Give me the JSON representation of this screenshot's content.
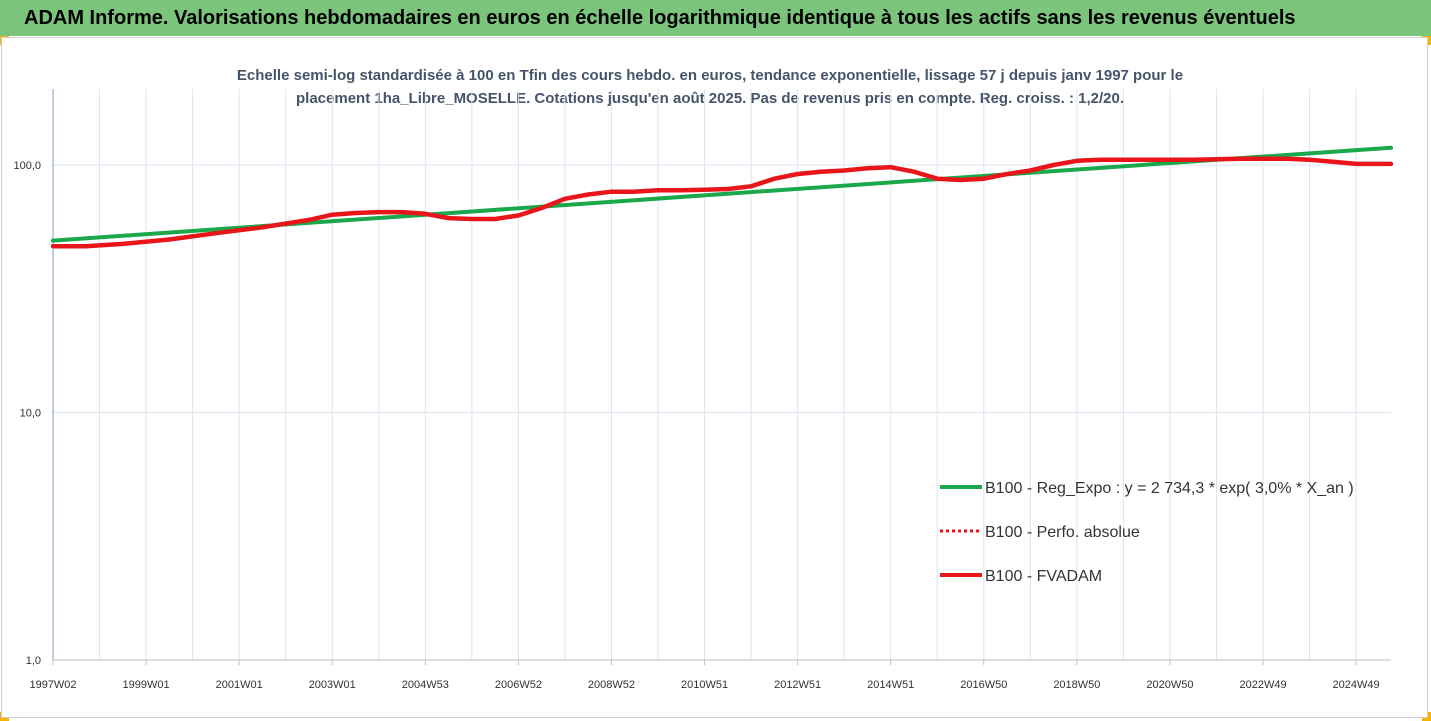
{
  "banner": {
    "title": "ADAM Informe. Valorisations hebdomadaires en euros en échelle logarithmique identique à tous les actifs sans les revenus éventuels"
  },
  "colors": {
    "banner_bg": "#7bc47b",
    "corner": "#f4b400",
    "trend": "#1aa84a",
    "fvadam": "#e8161b",
    "perfo": "#e8161b",
    "grid": "#dce6f0",
    "title_text": "#44546a"
  },
  "chart_data": {
    "type": "line",
    "title_line1": "Echelle semi-log standardisée à 100 en Tfin des cours hebdo. en euros, tendance exponentielle, lissage 57 j depuis janv 1997 pour le",
    "title_line2": "placement 1ha_Libre_MOSELLE. Cotations jusqu'en août 2025.  Pas de revenus pris en compte. Reg. croiss. : 1,2/20.",
    "xlabel": "",
    "ylabel": "",
    "yscale": "log",
    "ylim": [
      1,
      200
    ],
    "grid": true,
    "legend_position": "right-lower",
    "y_tick_labels": [
      "100,0",
      "10,0",
      "1,0"
    ],
    "y_tick_values": [
      100,
      10,
      1
    ],
    "x_tick_labels": [
      "1997W02",
      "1999W01",
      "2001W01",
      "2003W01",
      "2004W53",
      "2006W52",
      "2008W52",
      "2010W51",
      "2012W51",
      "2014W51",
      "2016W50",
      "2018W50",
      "2020W50",
      "2022W49",
      "2024W49"
    ],
    "x_tick_years": [
      1997.0,
      1999.0,
      2001.0,
      2003.0,
      2005.0,
      2007.0,
      2009.0,
      2011.0,
      2013.0,
      2015.0,
      2017.0,
      2019.0,
      2021.0,
      2023.0,
      2025.0
    ],
    "x_range": [
      1997.0,
      2025.75
    ],
    "series": [
      {
        "name": "B100 - Reg_Expo : y = 2 734,3 * exp( 3,0% *  X_an )",
        "style": "solid",
        "x": [
          1997.0,
          2025.75
        ],
        "y": [
          49.5,
          117.5
        ]
      },
      {
        "name": "B100 - Perfo. absolue",
        "style": "dotted",
        "x": [],
        "y": []
      },
      {
        "name": "B100 - FVADAM",
        "style": "solid",
        "x": [
          1997.0,
          1997.7,
          1998.5,
          1999.5,
          2000.5,
          2001.5,
          2002.5,
          2003.0,
          2003.5,
          2004.0,
          2004.5,
          2005.0,
          2005.5,
          2006.0,
          2006.5,
          2007.0,
          2007.5,
          2008.0,
          2008.5,
          2009.0,
          2009.5,
          2010.0,
          2010.5,
          2011.0,
          2011.5,
          2012.0,
          2012.5,
          2013.0,
          2013.5,
          2014.0,
          2014.5,
          2015.0,
          2015.5,
          2016.0,
          2016.5,
          2017.0,
          2017.5,
          2018.0,
          2018.5,
          2019.0,
          2019.5,
          2020.0,
          2020.5,
          2021.0,
          2021.5,
          2022.0,
          2022.5,
          2023.0,
          2023.5,
          2024.0,
          2024.5,
          2025.0,
          2025.75
        ],
        "y": [
          47,
          47,
          48,
          50,
          53,
          56,
          60,
          63,
          64,
          64.5,
          64.5,
          63.5,
          61,
          60.5,
          60.5,
          62.5,
          67,
          73,
          76,
          78,
          78,
          79,
          79,
          79.5,
          80,
          82,
          88,
          92,
          94,
          95,
          97,
          98,
          94,
          88,
          87,
          88,
          92,
          95,
          100,
          104,
          105,
          105,
          105,
          105,
          105,
          105.5,
          106,
          106,
          106,
          105,
          103,
          101,
          101
        ]
      }
    ]
  }
}
